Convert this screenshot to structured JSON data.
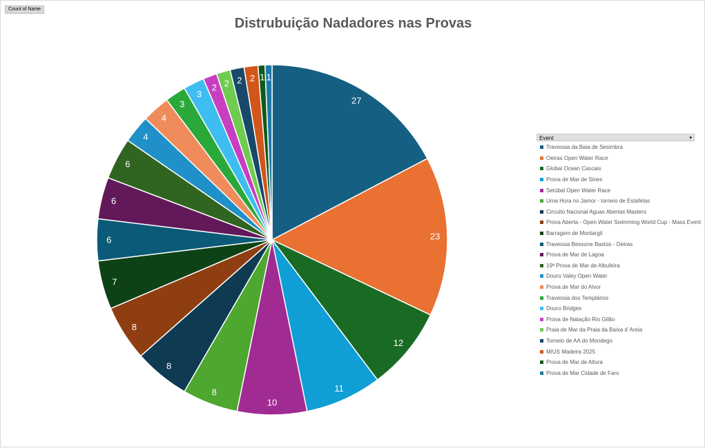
{
  "field_button": "Count of Name",
  "legend_filter": {
    "label": "Event",
    "dropdown_icon": "dropdown-arrow-icon"
  },
  "chart_data": {
    "type": "pie",
    "title": "Distrubuição Nadadores nas Provas",
    "legend_title": "Event",
    "legend_position": "right",
    "categories": [
      "Travessia da Baia de Sesimbra",
      "Oeiras Open Water Race",
      "Global Ocean Cascais",
      "Prova de Mar de Sines",
      "Setúbal Open Water Race",
      "Uma Hora no Jamor - torneio de Estafetas",
      "Circuito Nacional Aguas Abertas Masters",
      "Prova Aberta - Open Water Swimming World Cup - Mass Event",
      "Barragem de Montargil",
      "Travessia Bessone Bastos - Oeiras",
      "Prova de Mar de Lagoa",
      "19ª Prova de Mar de Albufeira",
      "Douro Valey Open Water",
      "Prova de Mar do Alvor",
      "Travessia dos Templários",
      "Douro Bridges",
      "Prova de Natação Rio Gilão",
      "Praia de Mar da Praia da Baixa d´Areia",
      "Torneio de AA do Mondego",
      "MIUS Madeira 2025",
      "Prova de Mar de Altura",
      "Prova de Mar Cidade de Faro"
    ],
    "values": [
      27,
      23,
      12,
      11,
      10,
      8,
      8,
      8,
      7,
      6,
      6,
      6,
      4,
      4,
      3,
      3,
      2,
      2,
      2,
      2,
      1,
      1
    ],
    "labels": [
      "27",
      "23",
      "12",
      "11",
      "10",
      "8",
      "8",
      "8",
      "7",
      "6",
      "6",
      "6",
      "4",
      "4",
      "3",
      "3",
      "2",
      "2",
      "2",
      "2",
      "1",
      "1"
    ],
    "colors": [
      "#156082",
      "#e97132",
      "#196b24",
      "#0f9ed5",
      "#a02b93",
      "#4ea72e",
      "#0e3a52",
      "#8f3e12",
      "#0d4216",
      "#0b5a78",
      "#62195a",
      "#306421",
      "#2090c8",
      "#f08c5c",
      "#2aa83a",
      "#3ebdf0",
      "#c83ec0",
      "#70cc50",
      "#18486a",
      "#d0561c",
      "#0f5a1c",
      "#1f78a8"
    ]
  }
}
